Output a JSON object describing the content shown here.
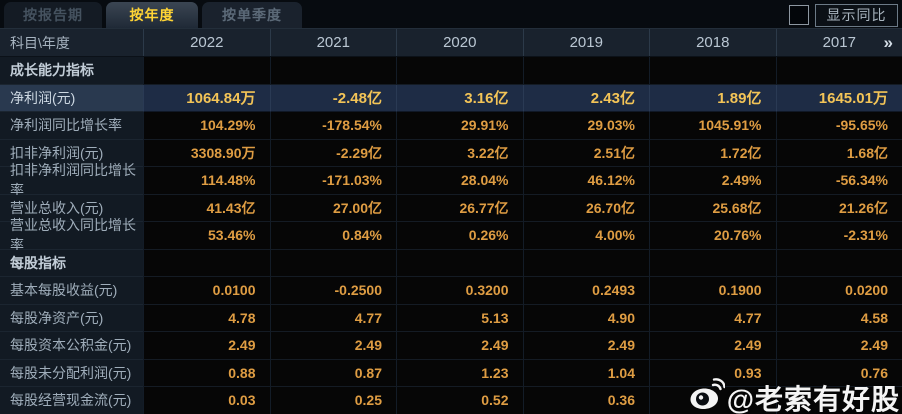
{
  "tabs": [
    {
      "label": "按报告期",
      "active": false
    },
    {
      "label": "按年度",
      "active": true
    },
    {
      "label": "按单季度",
      "active": false
    }
  ],
  "controls": {
    "show_yoy_label": "显示同比",
    "checkbox_checked": false
  },
  "table": {
    "corner_header": "科目\\年度",
    "year_columns": [
      "2022",
      "2021",
      "2020",
      "2019",
      "2018",
      "2017"
    ],
    "more_icon": "»",
    "rows": [
      {
        "type": "section",
        "label": "成长能力指标",
        "values": [
          "",
          "",
          "",
          "",
          "",
          ""
        ]
      },
      {
        "type": "data",
        "label": "净利润(元)",
        "highlight": true,
        "values": [
          "1064.84万",
          "-2.48亿",
          "3.16亿",
          "2.43亿",
          "1.89亿",
          "1645.01万"
        ]
      },
      {
        "type": "data",
        "label": "净利润同比增长率",
        "values": [
          "104.29%",
          "-178.54%",
          "29.91%",
          "29.03%",
          "1045.91%",
          "-95.65%"
        ]
      },
      {
        "type": "data",
        "label": "扣非净利润(元)",
        "values": [
          "3308.90万",
          "-2.29亿",
          "3.22亿",
          "2.51亿",
          "1.72亿",
          "1.68亿"
        ]
      },
      {
        "type": "data",
        "label": "扣非净利润同比增长率",
        "values": [
          "114.48%",
          "-171.03%",
          "28.04%",
          "46.12%",
          "2.49%",
          "-56.34%"
        ]
      },
      {
        "type": "data",
        "label": "营业总收入(元)",
        "values": [
          "41.43亿",
          "27.00亿",
          "26.77亿",
          "26.70亿",
          "25.68亿",
          "21.26亿"
        ]
      },
      {
        "type": "data",
        "label": "营业总收入同比增长率",
        "values": [
          "53.46%",
          "0.84%",
          "0.26%",
          "4.00%",
          "20.76%",
          "-2.31%"
        ]
      },
      {
        "type": "section",
        "label": "每股指标",
        "values": [
          "",
          "",
          "",
          "",
          "",
          ""
        ]
      },
      {
        "type": "data",
        "label": "基本每股收益(元)",
        "values": [
          "0.0100",
          "-0.2500",
          "0.3200",
          "0.2493",
          "0.1900",
          "0.0200"
        ]
      },
      {
        "type": "data",
        "label": "每股净资产(元)",
        "values": [
          "4.78",
          "4.77",
          "5.13",
          "4.90",
          "4.77",
          "4.58"
        ]
      },
      {
        "type": "data",
        "label": "每股资本公积金(元)",
        "values": [
          "2.49",
          "2.49",
          "2.49",
          "2.49",
          "2.49",
          "2.49"
        ]
      },
      {
        "type": "data",
        "label": "每股未分配利润(元)",
        "values": [
          "0.88",
          "0.87",
          "1.23",
          "1.04",
          "0.93",
          "0.76"
        ]
      },
      {
        "type": "data",
        "label": "每股经营现金流(元)",
        "values": [
          "0.03",
          "0.25",
          "0.52",
          "0.36",
          "",
          ""
        ]
      }
    ]
  },
  "watermark": {
    "text": "@老索有好股"
  },
  "colors": {
    "value_text": "#df9d43",
    "highlight_value_text": "#f3c457",
    "highlight_row_bg": "#1e2c45",
    "active_tab_text": "#ffd435",
    "header_bg": "#19222d",
    "label_column_bg": "#121a23",
    "watermark_text": "#f4f4f4"
  }
}
